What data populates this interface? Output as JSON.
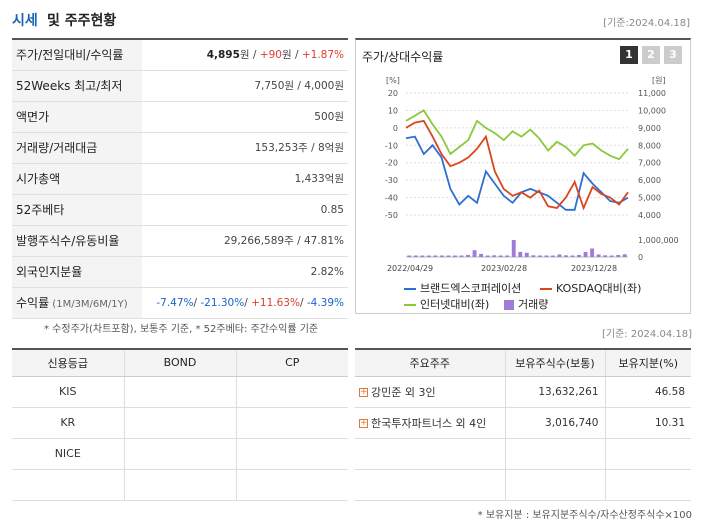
{
  "header": {
    "title_main": "시세",
    "title_rest": "및 주주현황",
    "date": "[기준:2024.04.18]"
  },
  "price_table": [
    {
      "label": "주가/전일대비/수익률",
      "parts": [
        {
          "text": "4,895",
          "cls": "bold"
        },
        {
          "text": "원 / ",
          "cls": ""
        },
        {
          "text": "+90",
          "cls": "red"
        },
        {
          "text": "원 / ",
          "cls": ""
        },
        {
          "text": "+1.87%",
          "cls": "red"
        }
      ]
    },
    {
      "label": "52Weeks 최고/최저",
      "parts": [
        {
          "text": "7,750원 / 4,000원",
          "cls": ""
        }
      ]
    },
    {
      "label": "액면가",
      "parts": [
        {
          "text": "500원",
          "cls": ""
        }
      ]
    },
    {
      "label": "거래량/거래대금",
      "parts": [
        {
          "text": "153,253주 / 8억원",
          "cls": ""
        }
      ]
    },
    {
      "label": "시가총액",
      "parts": [
        {
          "text": "1,433억원",
          "cls": ""
        }
      ]
    },
    {
      "label": "52주베타",
      "parts": [
        {
          "text": "0.85",
          "cls": ""
        }
      ]
    },
    {
      "label": "발행주식수/유동비율",
      "parts": [
        {
          "text": "29,266,589주 / 47.81%",
          "cls": ""
        }
      ]
    },
    {
      "label": "외국인지분율",
      "parts": [
        {
          "text": "2.82%",
          "cls": ""
        }
      ]
    },
    {
      "label": "수익률",
      "sublabel": "(1M/3M/6M/1Y)",
      "parts": [
        {
          "text": "-7.47%",
          "cls": "blue"
        },
        {
          "text": "/ ",
          "cls": ""
        },
        {
          "text": "-21.30%",
          "cls": "blue"
        },
        {
          "text": "/ ",
          "cls": ""
        },
        {
          "text": "+11.63%",
          "cls": "red"
        },
        {
          "text": "/ ",
          "cls": ""
        },
        {
          "text": "-4.39%",
          "cls": "blue"
        }
      ]
    }
  ],
  "note1": "* 수정주가(차트포함), 보통주 기준, * 52주베타: 주간수익률 기준",
  "chart_panel": {
    "title": "주가/상대수익률",
    "pages": [
      "1",
      "2",
      "3"
    ],
    "active_page": "1"
  },
  "chart_data": {
    "type": "line",
    "left_axis": {
      "unit": "[%]",
      "ticks": [
        20,
        10,
        0,
        -10,
        -20,
        -30,
        -40,
        -50
      ],
      "ylim": [
        -50,
        20
      ]
    },
    "right_axis": {
      "unit": "[원]",
      "ticks": [
        "11,000",
        "10,000",
        "9,000",
        "8,000",
        "7,000",
        "6,000",
        "5,000",
        "4,000"
      ],
      "ylim": [
        4000,
        11000
      ]
    },
    "volume_axis": {
      "ticks": [
        "1,000,000",
        "0"
      ],
      "ylim": [
        0,
        1000000
      ]
    },
    "x_ticks": [
      "2022/04/29",
      "2023/02/28",
      "2023/12/28"
    ],
    "series": [
      {
        "name": "브랜드엑스코퍼레이션",
        "color": "#2d6fd2",
        "values": [
          -6,
          -5,
          -15,
          -10,
          -17,
          -35,
          -44,
          -39,
          -43,
          -25,
          -32,
          -39,
          -43,
          -37,
          -35,
          -37,
          -39,
          -43,
          -47,
          -47,
          -26,
          -32,
          -37,
          -42,
          -43,
          -40
        ]
      },
      {
        "name": "KOSDAQ대비",
        "color": "#d9471c",
        "values": [
          0,
          3,
          4,
          -5,
          -15,
          -22,
          -20,
          -17,
          -12,
          -5,
          -25,
          -35,
          -39,
          -37,
          -40,
          -36,
          -45,
          -46,
          -40,
          -31,
          -46,
          -34,
          -38,
          -40,
          -44,
          -37
        ]
      },
      {
        "name": "인터넷대비",
        "color": "#8cc83c",
        "values": [
          4,
          7,
          10,
          2,
          -5,
          -15,
          -11,
          -7,
          4,
          0,
          -3,
          -7,
          -2,
          -5,
          -1,
          -6,
          -13,
          -8,
          -11,
          -16,
          -10,
          -9,
          -13,
          -16,
          -18,
          -12
        ]
      }
    ],
    "volume_series": {
      "name": "거래량",
      "color": "#a07cd8",
      "values": [
        60000,
        40000,
        50000,
        30000,
        40000,
        50000,
        40000,
        50000,
        60000,
        120000,
        400000,
        180000,
        80000,
        100000,
        60000,
        90000,
        1000000,
        300000,
        250000,
        100000,
        90000,
        70000,
        60000,
        150000,
        100000,
        60000,
        120000,
        300000,
        500000,
        150000,
        100000,
        80000,
        120000,
        160000
      ]
    }
  },
  "credit": {
    "headers": [
      "신용등급",
      "BOND",
      "CP"
    ],
    "rows": [
      [
        "KIS",
        "",
        ""
      ],
      [
        "KR",
        "",
        ""
      ],
      [
        "NICE",
        "",
        ""
      ],
      [
        "",
        "",
        ""
      ]
    ]
  },
  "date2": "[기준: 2024.04.18]",
  "holders": {
    "headers": [
      "주요주주",
      "보유주식수(보통)",
      "보유지분(%)"
    ],
    "rows": [
      [
        "강민준 외 3인",
        "13,632,261",
        "46.58"
      ],
      [
        "한국투자파트너스 외 4인",
        "3,016,740",
        "10.31"
      ],
      [
        "",
        "",
        ""
      ],
      [
        "",
        "",
        ""
      ]
    ]
  },
  "note2": "* 보유지분 : 보유지분주식수/자수산정주식수×100"
}
